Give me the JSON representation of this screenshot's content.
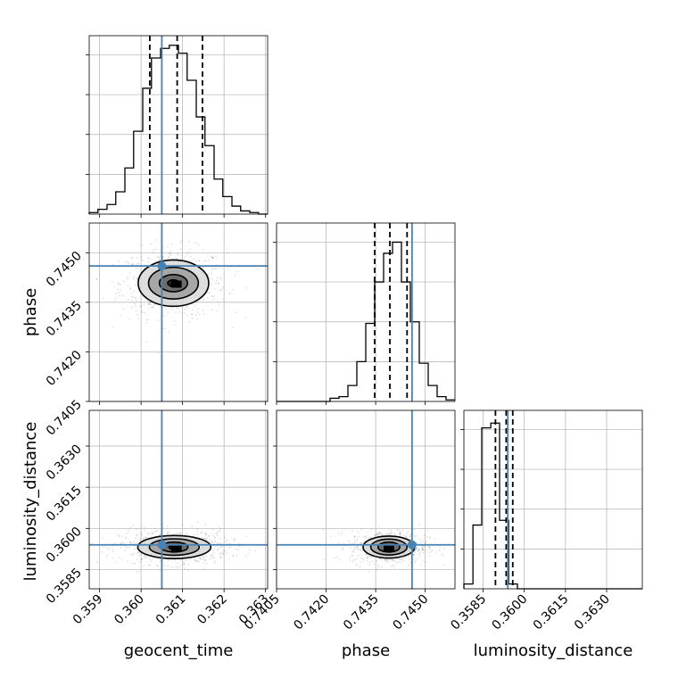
{
  "chart_data": {
    "type": "corner",
    "parameters": [
      "geocent_time",
      "phase",
      "luminosity_distance"
    ],
    "truths": {
      "geocent_time": 0.3605,
      "phase": 0.7446,
      "luminosity_distance": 0.3594
    },
    "quantiles": {
      "geocent_time": [
        0.36021,
        0.36087,
        0.36148
      ],
      "phase": [
        0.74347,
        0.74393,
        0.74445
      ],
      "luminosity_distance": [
        0.35895,
        0.35934,
        0.35958
      ]
    },
    "ranges": {
      "geocent_time": [
        0.35875,
        0.36305
      ],
      "phase": [
        0.7405,
        0.7459
      ],
      "luminosity_distance": [
        0.3578,
        0.3643
      ]
    },
    "axes": {
      "geocent_time": {
        "label": "geocent_time",
        "ticks": [
          0.359,
          0.36,
          0.361,
          0.362,
          0.363
        ],
        "tick_labels": [
          "0.359",
          "0.360",
          "0.361",
          "0.362",
          "0.363"
        ]
      },
      "phase": {
        "label": "phase",
        "ticks": [
          0.7405,
          0.742,
          0.7435,
          0.745
        ],
        "tick_labels": [
          "0.7405",
          "0.7420",
          "0.7435",
          "0.7450"
        ]
      },
      "luminosity_distance": {
        "label": "luminosity_distance",
        "ticks": [
          0.3585,
          0.36,
          0.3615,
          0.363
        ],
        "tick_labels": [
          "0.3585",
          "0.3600",
          "0.3615",
          "0.3630"
        ]
      }
    },
    "histograms": {
      "geocent_time": {
        "edges": [
          0.35875,
          0.35896,
          0.35918,
          0.35939,
          0.35961,
          0.35982,
          0.36004,
          0.36025,
          0.36047,
          0.36068,
          0.3609,
          0.36111,
          0.36133,
          0.36154,
          0.36176,
          0.36197,
          0.36219,
          0.3624,
          0.36262,
          0.36283,
          0.36305
        ],
        "counts": [
          1,
          3,
          6,
          14,
          29,
          52,
          79,
          98,
          104,
          106,
          101,
          84,
          61,
          43,
          22,
          11,
          5,
          2,
          1,
          0
        ]
      },
      "phase": {
        "edges": [
          0.7405,
          0.74077,
          0.74104,
          0.74131,
          0.74158,
          0.74185,
          0.74212,
          0.74239,
          0.74266,
          0.74293,
          0.7432,
          0.74347,
          0.74374,
          0.74401,
          0.74428,
          0.74455,
          0.74482,
          0.74509,
          0.74536,
          0.74563,
          0.7459
        ],
        "counts": [
          0,
          0,
          0,
          0,
          0,
          0,
          2,
          3,
          10,
          25,
          49,
          75,
          93,
          100,
          75,
          50,
          24,
          10,
          3,
          1
        ]
      },
      "luminosity_distance": {
        "edges": [
          0.3578,
          0.35813,
          0.35845,
          0.35878,
          0.3591,
          0.35943,
          0.35975,
          0.36008,
          0.3604,
          0.36073,
          0.36105,
          0.36138,
          0.3617,
          0.36203,
          0.36235,
          0.36268,
          0.363,
          0.36333,
          0.36365,
          0.36398,
          0.3643
        ],
        "counts": [
          3,
          40,
          101,
          104,
          43,
          3,
          0,
          0,
          0,
          0,
          0,
          0,
          0,
          0,
          0,
          0,
          0,
          0,
          0,
          0
        ]
      }
    },
    "histogram_ylim": [
      0,
      112
    ],
    "density_contours": {
      "phase|geocent_time": {
        "center": [
          0.36078,
          0.74408
        ],
        "peak": [
          0.36085,
          0.74405
        ],
        "levels": [
          {
            "sx": 0.00085,
            "sy": 0.0007,
            "fill": 0.15
          },
          {
            "sx": 0.0006,
            "sy": 0.00048,
            "fill": 0.38
          },
          {
            "sx": 0.00034,
            "sy": 0.00026,
            "fill": 0.62
          },
          {
            "sx": 0.00014,
            "sy": 0.0001,
            "fill": 0.9
          }
        ]
      },
      "luminosity_distance|geocent_time": {
        "center": [
          0.3608,
          0.35932
        ],
        "peak": [
          0.36085,
          0.3593
        ],
        "levels": [
          {
            "sx": 0.00088,
            "sy": 0.00042,
            "fill": 0.15
          },
          {
            "sx": 0.0006,
            "sy": 0.0003,
            "fill": 0.38
          },
          {
            "sx": 0.00033,
            "sy": 0.00018,
            "fill": 0.62
          },
          {
            "sx": 0.00013,
            "sy": 8e-05,
            "fill": 0.9
          }
        ]
      },
      "luminosity_distance|phase": {
        "center": [
          0.7439,
          0.35932
        ],
        "peak": [
          0.7439,
          0.3593
        ],
        "levels": [
          {
            "sx": 0.00078,
            "sy": 0.0004,
            "fill": 0.15
          },
          {
            "sx": 0.00055,
            "sy": 0.00029,
            "fill": 0.38
          },
          {
            "sx": 0.00033,
            "sy": 0.00018,
            "fill": 0.62
          },
          {
            "sx": 0.00013,
            "sy": 8e-05,
            "fill": 0.9
          }
        ]
      }
    },
    "colors": {
      "truth": "#4682b4",
      "histogram": "#000000",
      "grid": "#b0b0b0",
      "contour": "#000000"
    },
    "grid": true
  }
}
